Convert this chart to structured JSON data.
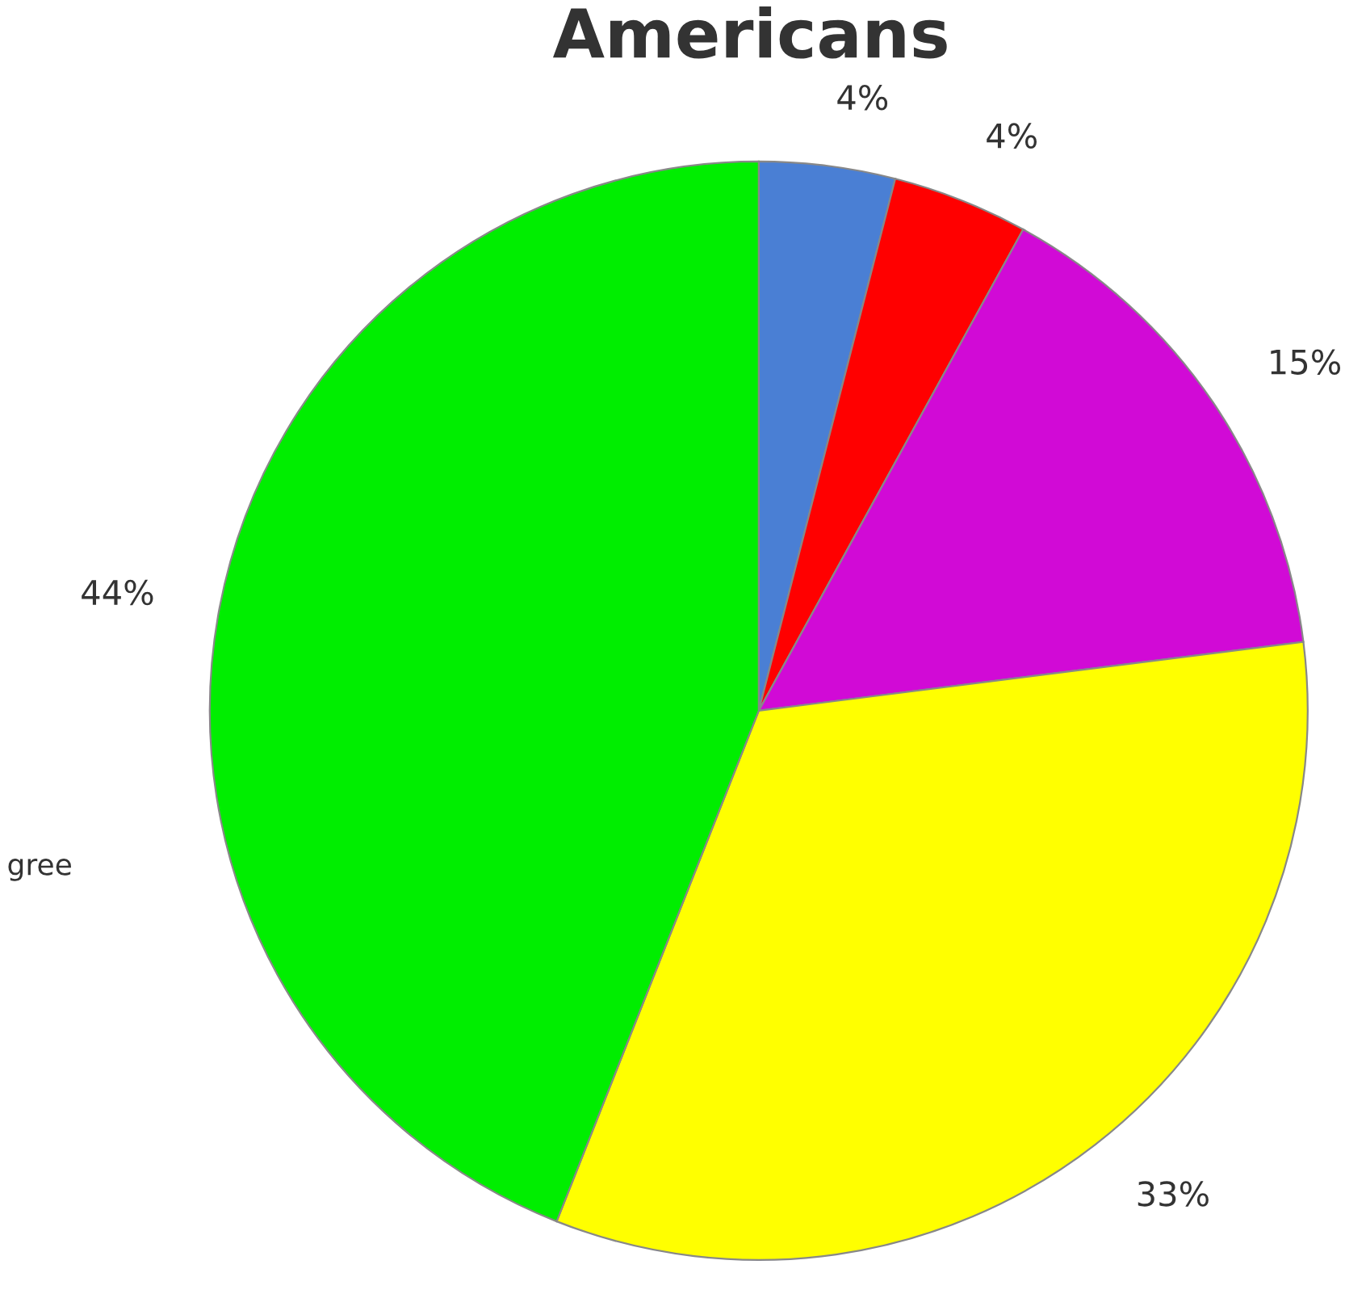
{
  "chart_data": {
    "type": "pie",
    "title": "Americans",
    "categories": [
      null,
      null,
      null,
      null,
      null
    ],
    "values": [
      4,
      4,
      15,
      33,
      44
    ],
    "colors": [
      "#4a7fd4",
      "#ff0000",
      "#d10ad6",
      "#ffff00",
      "#00ee00"
    ],
    "value_labels": [
      "4%",
      "4%",
      "15%",
      "33%",
      "44%"
    ],
    "annotations": [
      "gree"
    ]
  }
}
